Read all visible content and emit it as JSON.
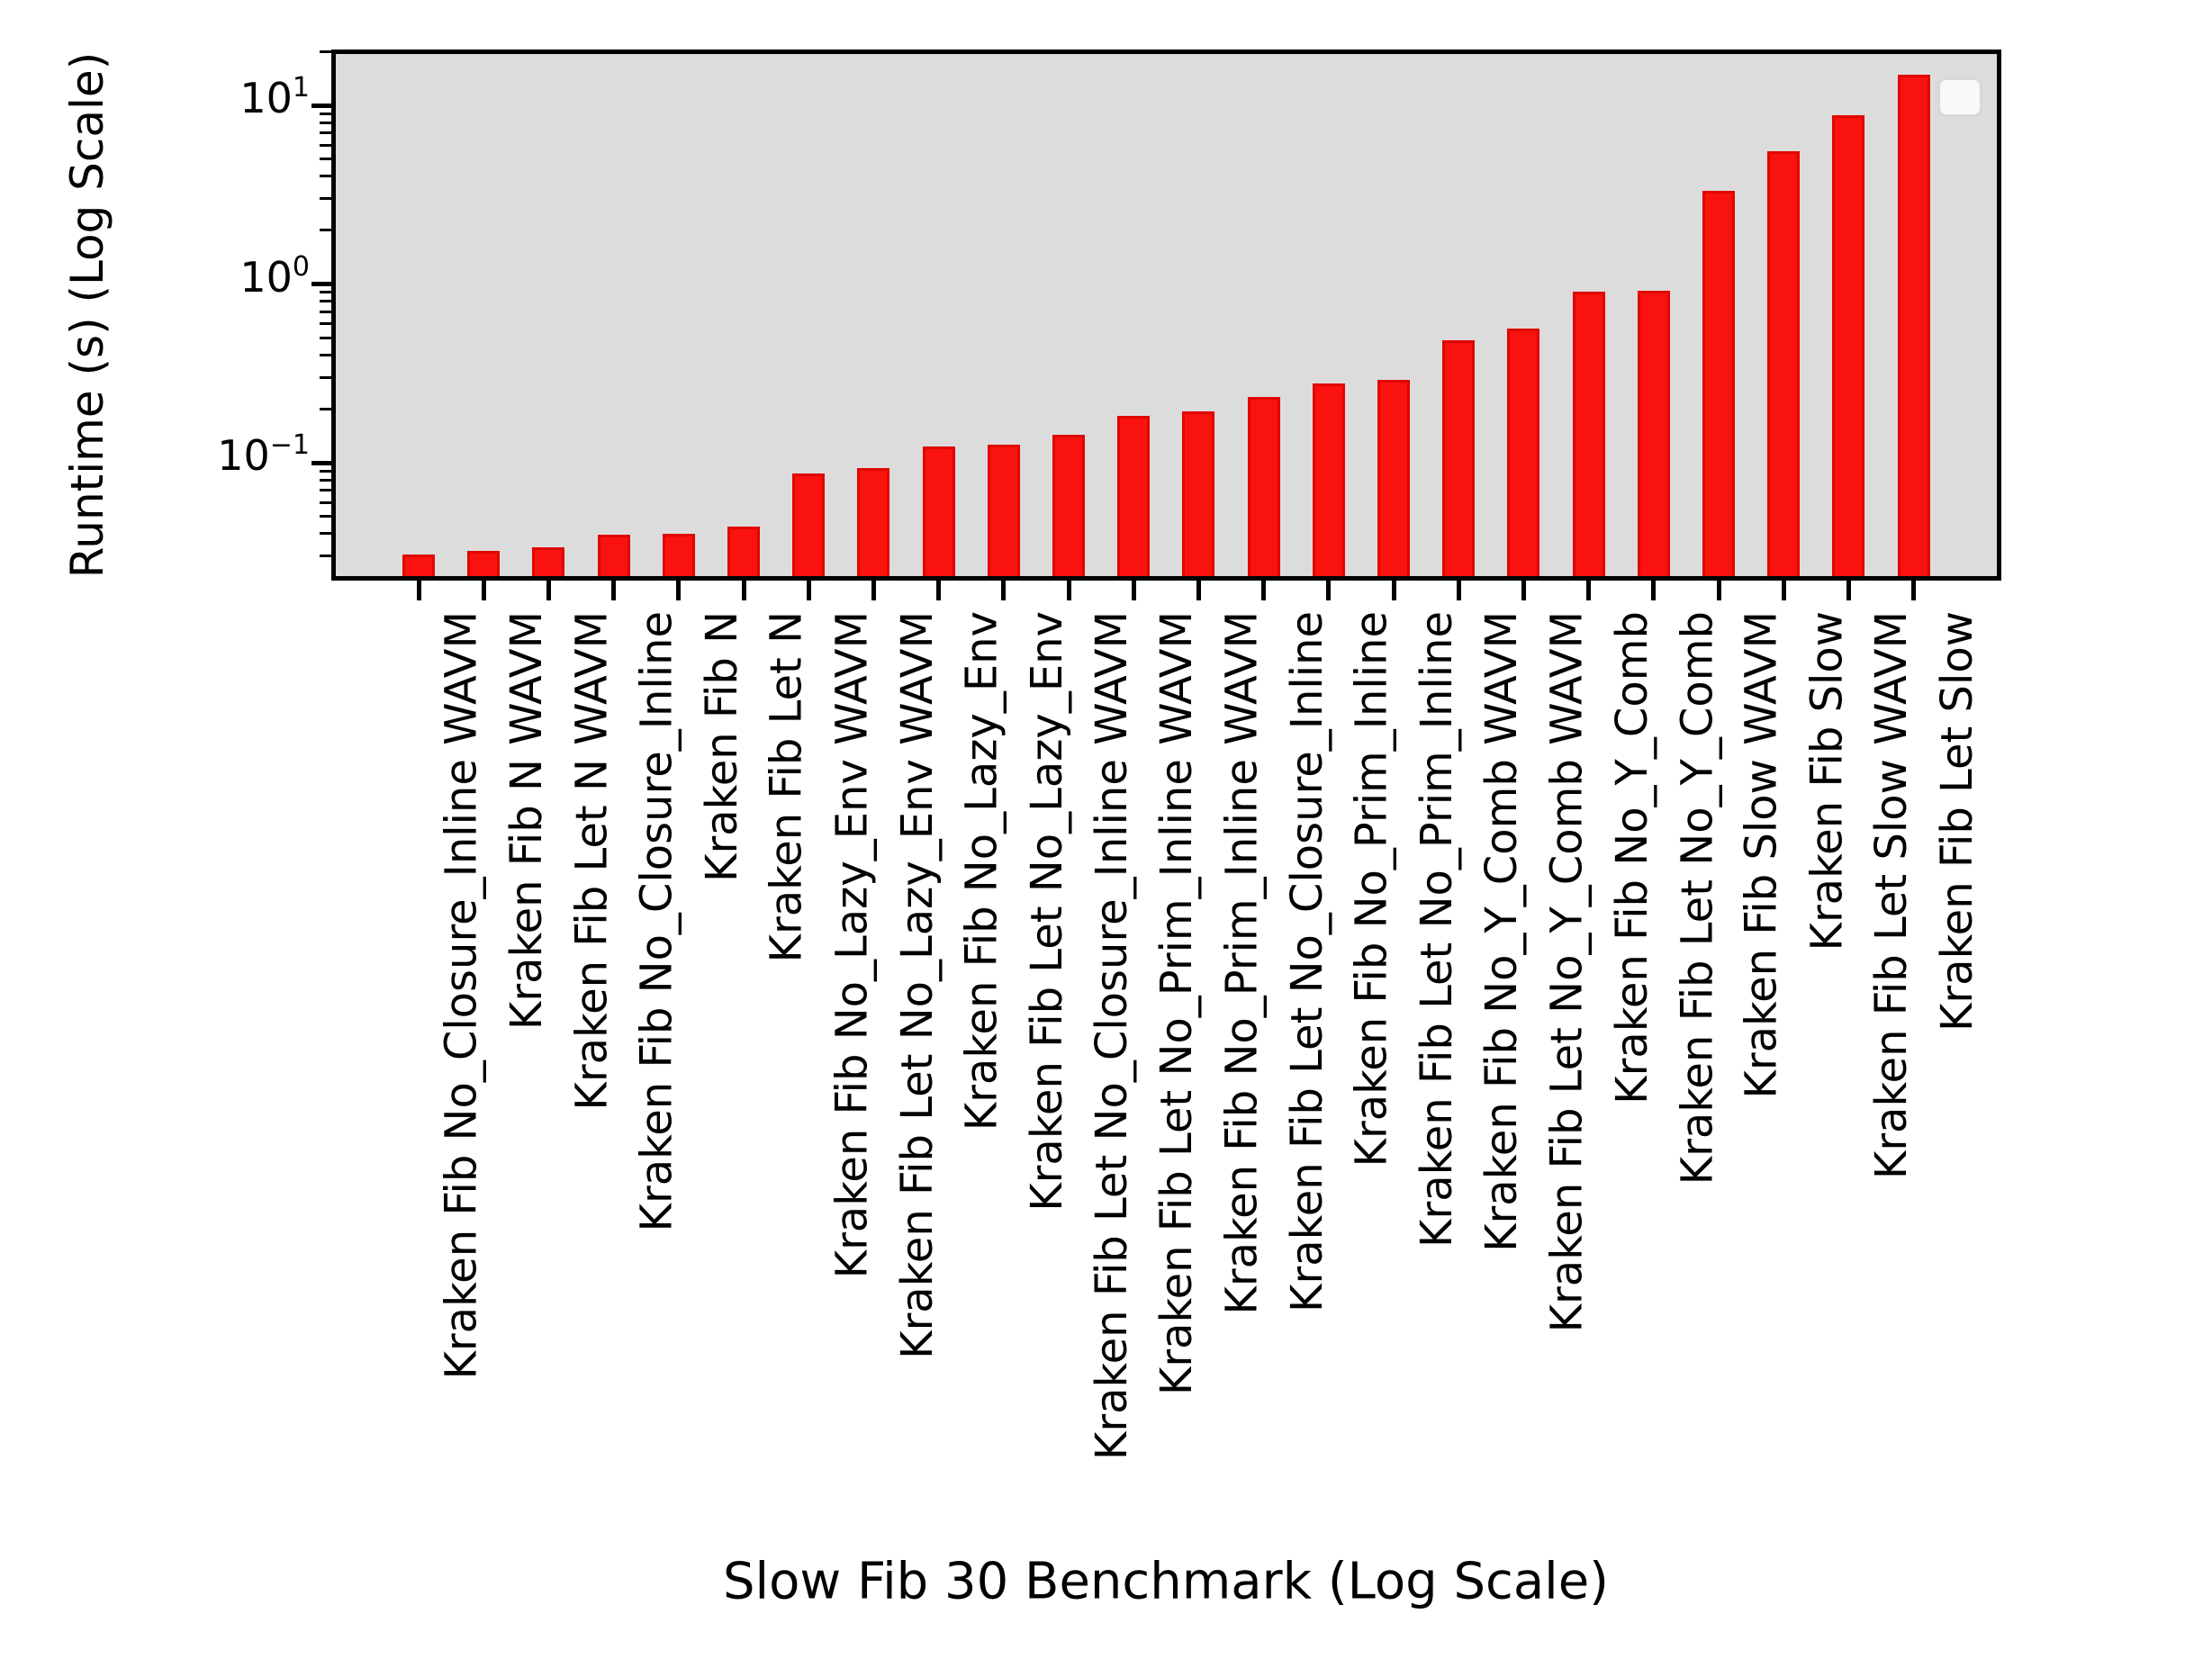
{
  "figure": {
    "background_color": "#ffffff",
    "plot_background_color": "#dcdcdc",
    "bar_fill_color": "#fa120e",
    "bar_edge_color": "#e00600",
    "spine_color": "#000000",
    "legend": {
      "present": true,
      "entries": []
    }
  },
  "y_axis": {
    "scale": "log",
    "major_ticks": [
      {
        "base": "10",
        "exponent": "1",
        "value": 10
      },
      {
        "base": "10",
        "exponent": "0",
        "value": 1
      },
      {
        "base": "10",
        "exponent": "−1",
        "value": 0.1
      }
    ],
    "minor_tick_values": [
      0.03,
      0.04,
      0.05,
      0.06,
      0.07,
      0.08,
      0.09,
      0.2,
      0.3,
      0.4,
      0.5,
      0.6,
      0.7,
      0.8,
      0.9,
      2,
      3,
      4,
      5,
      6,
      7,
      8,
      9,
      20
    ]
  },
  "chart_data": {
    "type": "bar",
    "title": "",
    "xlabel": "Slow Fib 30 Benchmark (Log Scale)",
    "ylabel": "Runtime (s) (Log Scale)",
    "yscale": "log",
    "ylim": [
      0.0219,
      20.5
    ],
    "grid": false,
    "legend_position": "upper right (empty)",
    "bar_color": "red",
    "categories": [
      "Kraken Fib No_Closure_Inline WAVM",
      "Kraken Fib N WAVM",
      "Kraken Fib Let N WAVM",
      "Kraken Fib No_Closure_Inline",
      "Kraken Fib N",
      "Kraken Fib Let N",
      "Kraken Fib No_Lazy_Env WAVM",
      "Kraken Fib Let No_Lazy_Env WAVM",
      "Kraken Fib No_Lazy_Env",
      "Kraken Fib Let No_Lazy_Env",
      "Kraken Fib Let No_Closure_Inline WAVM",
      "Kraken Fib Let No_Prim_Inline WAVM",
      "Kraken Fib No_Prim_Inline WAVM",
      "Kraken Fib Let No_Closure_Inline",
      "Kraken Fib No_Prim_Inline",
      "Kraken Fib Let No_Prim_Inline",
      "Kraken Fib No_Y_Comb WAVM",
      "Kraken Fib Let No_Y_Comb WAVM",
      "Kraken Fib No_Y_Comb",
      "Kraken Fib Let No_Y_Comb",
      "Kraken Fib Slow WAVM",
      "Kraken Fib Slow",
      "Kraken Fib Let Slow WAVM",
      "Kraken Fib Let Slow"
    ],
    "values": [
      0.0306,
      0.0321,
      0.0336,
      0.0395,
      0.0401,
      0.0439,
      0.0875,
      0.0937,
      0.1232,
      0.1261,
      0.1433,
      0.1828,
      0.1937,
      0.2329,
      0.2776,
      0.2907,
      0.485,
      0.563,
      0.905,
      0.916,
      3.32,
      5.53,
      8.8,
      14.8
    ]
  }
}
